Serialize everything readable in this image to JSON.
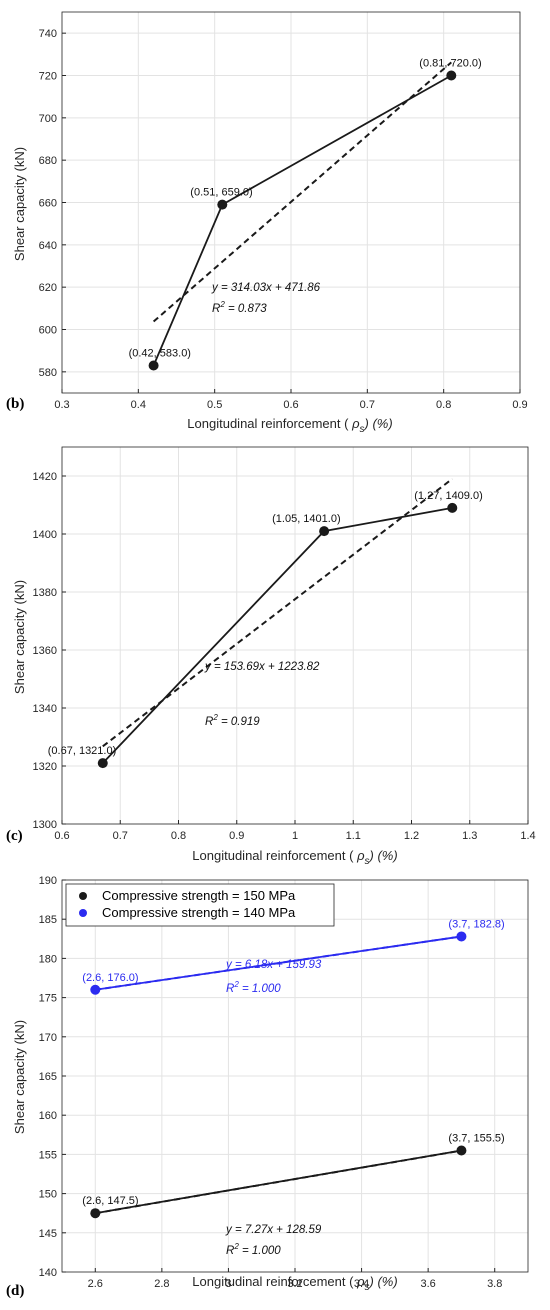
{
  "chart_data": [
    {
      "type": "line",
      "panel_label": "(b)",
      "xlabel_main": "Longitudinal reinforcement ( ",
      "xlabel_rho": "ρ",
      "xlabel_sub": "s",
      "xlabel_tail": ") (%)",
      "ylabel": "Shear capacity (kN)",
      "xlim": [
        0.3,
        0.9
      ],
      "ylim": [
        570,
        750
      ],
      "xticks": [
        0.3,
        0.4,
        0.5,
        0.6,
        0.7,
        0.8,
        0.9
      ],
      "yticks": [
        580,
        600,
        620,
        640,
        660,
        680,
        700,
        720,
        740
      ],
      "grid": true,
      "series": [
        {
          "color": "#1a1a1a",
          "x": [
            0.42,
            0.51,
            0.81
          ],
          "y": [
            583.0,
            659.0,
            720.0
          ],
          "point_labels": [
            "(0.42, 583.0)",
            "(0.51, 659.0)",
            "(0.81, 720.0)"
          ],
          "fit": {
            "slope": 314.03,
            "intercept": 471.86,
            "x_range": [
              0.42,
              0.81
            ],
            "equation": "y = 314.03x + 471.86",
            "r2_text": "= 0.873"
          }
        }
      ]
    },
    {
      "type": "line",
      "panel_label": "(c)",
      "xlabel_main": "Longitudinal reinforcement ( ",
      "xlabel_rho": "ρ",
      "xlabel_sub": "s",
      "xlabel_tail": ") (%)",
      "ylabel": "Shear capacity (kN)",
      "xlim": [
        0.6,
        1.4
      ],
      "ylim": [
        1300,
        1430
      ],
      "xticks": [
        0.6,
        0.7,
        0.8,
        0.9,
        1,
        1.1,
        1.2,
        1.3,
        1.4
      ],
      "yticks": [
        1300,
        1320,
        1340,
        1360,
        1380,
        1400,
        1420
      ],
      "grid": true,
      "series": [
        {
          "color": "#1a1a1a",
          "x": [
            0.67,
            1.05,
            1.27
          ],
          "y": [
            1321.0,
            1401.0,
            1409.0
          ],
          "point_labels": [
            "(0.67, 1321.0)",
            "(1.05, 1401.0)",
            "(1.27, 1409.0)"
          ],
          "fit": {
            "slope": 153.69,
            "intercept": 1223.82,
            "x_range": [
              0.67,
              1.27
            ],
            "equation": "y = 153.69x + 1223.82",
            "r2_text": "= 0.919"
          }
        }
      ]
    },
    {
      "type": "line",
      "panel_label": "(d)",
      "xlabel_main": "Longitudinal reinforcement ( ",
      "xlabel_rho": "ρ",
      "xlabel_sub": "s",
      "xlabel_tail": ") (%)",
      "ylabel": "Shear capacity (kN)",
      "xlim": [
        2.5,
        3.9
      ],
      "ylim": [
        140,
        190
      ],
      "xticks": [
        2.6,
        2.8,
        3,
        3.2,
        3.4,
        3.6,
        3.8
      ],
      "yticks": [
        140,
        145,
        150,
        155,
        160,
        165,
        170,
        175,
        180,
        185,
        190
      ],
      "grid": true,
      "legend_position": "top-left",
      "series": [
        {
          "name": "Compressive strength = 150 MPa",
          "color": "#1a1a1a",
          "x": [
            2.6,
            3.7
          ],
          "y": [
            147.5,
            155.5
          ],
          "point_labels": [
            "(2.6, 147.5)",
            "(3.7, 155.5)"
          ],
          "fit": {
            "slope": 7.27,
            "intercept": 128.59,
            "x_range": [
              2.6,
              3.7
            ],
            "equation": "y = 7.27x + 128.59",
            "r2_text": "= 1.000"
          }
        },
        {
          "name": "Compressive strength = 140 MPa",
          "color": "#2b2bf0",
          "x": [
            2.6,
            3.7
          ],
          "y": [
            176.0,
            182.8
          ],
          "point_labels": [
            "(2.6, 176.0)",
            "(3.7, 182.8)"
          ],
          "fit": {
            "slope": 6.18,
            "intercept": 159.93,
            "x_range": [
              2.6,
              3.7
            ],
            "equation": "y = 6.18x + 159.93",
            "r2_text": "= 1.000"
          }
        }
      ]
    }
  ]
}
